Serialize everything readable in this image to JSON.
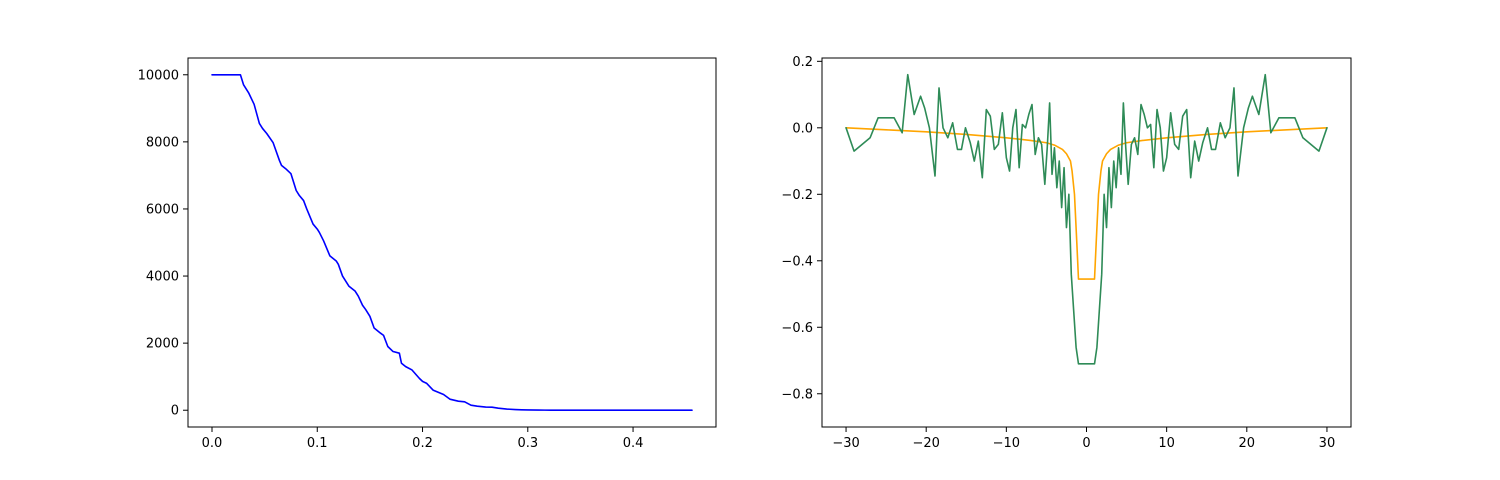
{
  "chart_data": [
    {
      "type": "line",
      "title": "",
      "xlabel": "",
      "ylabel": "",
      "xlim": [
        -0.0228,
        0.4788
      ],
      "ylim": [
        -500,
        10500
      ],
      "xticks": [
        0.0,
        0.1,
        0.2,
        0.3,
        0.4
      ],
      "xtick_labels": [
        "0.0",
        "0.1",
        "0.2",
        "0.3",
        "0.4"
      ],
      "yticks": [
        0,
        2000,
        4000,
        6000,
        8000,
        10000
      ],
      "ytick_labels": [
        "0",
        "2000",
        "4000",
        "6000",
        "8000",
        "10000"
      ],
      "grid": false,
      "series": [
        {
          "color": "#0000ff",
          "x": [
            0.0,
            0.027,
            0.03,
            0.035,
            0.04,
            0.045,
            0.048,
            0.052,
            0.058,
            0.064,
            0.066,
            0.07,
            0.075,
            0.08,
            0.083,
            0.087,
            0.09,
            0.096,
            0.1,
            0.102,
            0.106,
            0.112,
            0.118,
            0.12,
            0.124,
            0.13,
            0.136,
            0.139,
            0.143,
            0.146,
            0.15,
            0.154,
            0.16,
            0.163,
            0.167,
            0.172,
            0.178,
            0.18,
            0.184,
            0.19,
            0.197,
            0.2,
            0.204,
            0.21,
            0.216,
            0.22,
            0.226,
            0.234,
            0.24,
            0.246,
            0.252,
            0.26,
            0.266,
            0.272,
            0.28,
            0.288,
            0.294,
            0.3,
            0.31,
            0.316,
            0.322,
            0.33,
            0.34,
            0.35,
            0.36,
            0.366,
            0.376,
            0.39,
            0.41,
            0.43,
            0.456
          ],
          "y": [
            10000,
            10000,
            9700,
            9450,
            9120,
            8550,
            8400,
            8250,
            7980,
            7450,
            7300,
            7200,
            7050,
            6550,
            6400,
            6250,
            6000,
            5550,
            5400,
            5300,
            5050,
            4600,
            4450,
            4350,
            4000,
            3700,
            3550,
            3400,
            3130,
            3000,
            2800,
            2450,
            2300,
            2230,
            1900,
            1750,
            1700,
            1400,
            1300,
            1200,
            950,
            860,
            800,
            600,
            520,
            470,
            330,
            270,
            250,
            150,
            120,
            95,
            90,
            60,
            35,
            20,
            12,
            8,
            5,
            3,
            2,
            1,
            0,
            0,
            0,
            0,
            0,
            0,
            0,
            0,
            0
          ]
        }
      ]
    },
    {
      "type": "line",
      "title": "",
      "xlabel": "",
      "ylabel": "",
      "xlim": [
        -33,
        33
      ],
      "ylim": [
        -0.9,
        0.21
      ],
      "xticks": [
        -30,
        -20,
        -10,
        0,
        10,
        20,
        30
      ],
      "xtick_labels": [
        "−30",
        "−20",
        "−10",
        "0",
        "10",
        "20",
        "30"
      ],
      "yticks": [
        -0.8,
        -0.6,
        -0.4,
        -0.2,
        0.0,
        0.2
      ],
      "ytick_labels": [
        "−0.8",
        "−0.6",
        "−0.4",
        "−0.2",
        "0.0",
        "0.2"
      ],
      "grid": false,
      "series": [
        {
          "color": "#ffa500",
          "x": [
            -30,
            -25,
            -20,
            -15,
            -10,
            -7,
            -5,
            -4,
            -3,
            -2.5,
            -2,
            -1.8,
            -1.5,
            -1.2,
            -1.0,
            1.0,
            1.2,
            1.5,
            1.8,
            2,
            2.5,
            3,
            4,
            5,
            7,
            10,
            15,
            20,
            25,
            30
          ],
          "y": [
            0.0,
            -0.006,
            -0.012,
            -0.02,
            -0.03,
            -0.038,
            -0.045,
            -0.052,
            -0.065,
            -0.078,
            -0.1,
            -0.13,
            -0.2,
            -0.35,
            -0.455,
            -0.455,
            -0.35,
            -0.2,
            -0.13,
            -0.1,
            -0.078,
            -0.065,
            -0.052,
            -0.045,
            -0.038,
            -0.03,
            -0.02,
            -0.012,
            -0.006,
            0.0
          ]
        },
        {
          "color": "#2e8b57",
          "x": [
            -30,
            -29,
            -27,
            -26,
            -24,
            -23,
            -22.3,
            -21.5,
            -20.7,
            -20.2,
            -19.6,
            -18.9,
            -18.4,
            -17.9,
            -17.3,
            -16.7,
            -16.1,
            -15.6,
            -15.1,
            -14.5,
            -14.0,
            -13.5,
            -13.0,
            -12.5,
            -12.0,
            -11.5,
            -11.0,
            -10.5,
            -10.0,
            -9.6,
            -9.2,
            -8.8,
            -8.4,
            -8.0,
            -7.6,
            -7.2,
            -6.8,
            -6.4,
            -6.0,
            -5.6,
            -5.2,
            -4.9,
            -4.6,
            -4.3,
            -4.0,
            -3.7,
            -3.4,
            -3.1,
            -2.8,
            -2.5,
            -2.2,
            -1.9,
            -1.6,
            -1.3,
            -1.0,
            1.0,
            1.3,
            1.6,
            1.9,
            2.2,
            2.5,
            2.8,
            3.1,
            3.4,
            3.7,
            4.0,
            4.3,
            4.6,
            4.9,
            5.2,
            5.6,
            6.0,
            6.4,
            6.8,
            7.2,
            7.6,
            8.0,
            8.4,
            8.8,
            9.2,
            9.6,
            10.0,
            10.5,
            11.0,
            11.5,
            12.0,
            12.5,
            13.0,
            13.5,
            14.0,
            14.5,
            15.1,
            15.6,
            16.1,
            16.7,
            17.3,
            17.9,
            18.4,
            18.9,
            19.6,
            20.2,
            20.7,
            21.5,
            22.3,
            23,
            24,
            26,
            27,
            29,
            30
          ],
          "y": [
            0.0,
            -0.07,
            -0.03,
            0.03,
            0.03,
            -0.015,
            0.16,
            0.04,
            0.095,
            0.06,
            0.0,
            -0.145,
            0.12,
            0.0,
            -0.03,
            0.015,
            -0.065,
            -0.065,
            0.0,
            -0.045,
            -0.1,
            -0.04,
            -0.15,
            0.055,
            0.035,
            -0.065,
            -0.05,
            0.045,
            -0.09,
            -0.13,
            0.0,
            0.055,
            -0.12,
            0.01,
            0.0,
            0.04,
            0.07,
            -0.08,
            -0.03,
            -0.05,
            -0.17,
            -0.06,
            0.075,
            -0.14,
            -0.06,
            -0.18,
            -0.1,
            -0.24,
            -0.12,
            -0.3,
            -0.2,
            -0.44,
            -0.55,
            -0.66,
            -0.71,
            -0.71,
            -0.66,
            -0.55,
            -0.44,
            -0.2,
            -0.3,
            -0.12,
            -0.24,
            -0.1,
            -0.18,
            -0.06,
            -0.14,
            0.075,
            -0.06,
            -0.17,
            -0.05,
            -0.03,
            -0.08,
            0.07,
            0.04,
            0.0,
            0.01,
            -0.12,
            0.055,
            0.0,
            -0.13,
            -0.09,
            0.045,
            -0.05,
            -0.065,
            0.035,
            0.055,
            -0.15,
            -0.04,
            -0.1,
            -0.045,
            0.0,
            -0.065,
            -0.065,
            0.015,
            -0.03,
            0.0,
            0.12,
            -0.145,
            0.0,
            0.06,
            0.095,
            0.04,
            0.16,
            -0.015,
            0.03,
            0.03,
            -0.03,
            -0.07,
            0.0
          ]
        }
      ]
    }
  ]
}
